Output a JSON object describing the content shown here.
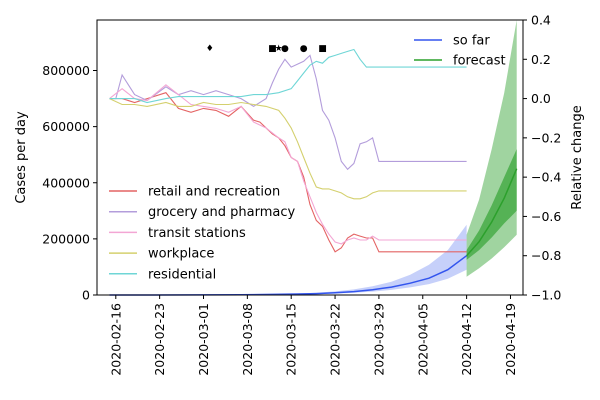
{
  "chart_data": {
    "type": "line",
    "title": "",
    "xlabel": "",
    "ylabel": "Cases per day",
    "y2label": "Relative change",
    "x_start": "2020-02-13",
    "x_end": "2020-04-21",
    "ylim": [
      0,
      980000
    ],
    "y2lim": [
      -1.0,
      0.4
    ],
    "yticks": [
      0,
      200000,
      400000,
      600000,
      800000
    ],
    "yticklabels": [
      "0",
      "200000",
      "400000",
      "600000",
      "800000"
    ],
    "y2ticks": [
      -1.0,
      -0.8,
      -0.6,
      -0.4,
      -0.2,
      0.0,
      0.2,
      0.4
    ],
    "y2ticklabels": [
      "−1.0",
      "−0.8",
      "−0.6",
      "−0.4",
      "−0.2",
      "0.0",
      "0.2",
      "0.4"
    ],
    "xticks": [
      "2020-02-16",
      "2020-02-23",
      "2020-03-01",
      "2020-03-08",
      "2020-03-15",
      "2020-03-22",
      "2020-03-29",
      "2020-04-05",
      "2020-04-12",
      "2020-04-19"
    ],
    "cases_so_far": {
      "name": "so far",
      "color": "#3355ee",
      "x": [
        "2020-02-15",
        "2020-02-22",
        "2020-02-29",
        "2020-03-07",
        "2020-03-12",
        "2020-03-16",
        "2020-03-19",
        "2020-03-22",
        "2020-03-25",
        "2020-03-28",
        "2020-03-31",
        "2020-04-03",
        "2020-04-06",
        "2020-04-09",
        "2020-04-12"
      ],
      "mean": [
        0,
        0,
        200,
        1000,
        2000,
        3500,
        5000,
        8000,
        12000,
        19000,
        28000,
        42000,
        60000,
        90000,
        140000
      ],
      "lower": [
        0,
        0,
        100,
        600,
        1200,
        2000,
        3000,
        5000,
        8000,
        12000,
        18000,
        27000,
        39000,
        58000,
        90000
      ],
      "upper": [
        0,
        0,
        400,
        1600,
        3200,
        5500,
        8000,
        13000,
        20000,
        31000,
        47000,
        72000,
        108000,
        160000,
        250000
      ]
    },
    "cases_forecast": {
      "name": "forecast",
      "color": "#2ca02c",
      "x": [
        "2020-04-12",
        "2020-04-14",
        "2020-04-16",
        "2020-04-18",
        "2020-04-20"
      ],
      "mean": [
        140000,
        190000,
        260000,
        345000,
        450000
      ],
      "inner_lower": [
        125000,
        160000,
        205000,
        255000,
        300000
      ],
      "inner_upper": [
        160000,
        230000,
        320000,
        420000,
        520000
      ],
      "outer_lower": [
        65000,
        95000,
        130000,
        170000,
        215000
      ],
      "outer_upper": [
        215000,
        340000,
        520000,
        720000,
        980000
      ]
    },
    "mobility_series": [
      {
        "name": "retail and recreation",
        "color": "#e46464",
        "x": [
          "2020-02-15",
          "2020-02-17",
          "2020-02-19",
          "2020-02-21",
          "2020-02-24",
          "2020-02-26",
          "2020-02-28",
          "2020-03-01",
          "2020-03-03",
          "2020-03-05",
          "2020-03-07",
          "2020-03-09",
          "2020-03-10",
          "2020-03-12",
          "2020-03-13",
          "2020-03-14",
          "2020-03-15",
          "2020-03-16",
          "2020-03-17",
          "2020-03-18",
          "2020-03-19",
          "2020-03-20",
          "2020-03-21",
          "2020-03-22",
          "2020-03-23",
          "2020-03-24",
          "2020-03-25",
          "2020-03-26",
          "2020-03-27",
          "2020-03-28",
          "2020-03-29",
          "2020-04-12"
        ],
        "values": [
          0.0,
          0.0,
          -0.02,
          0.0,
          0.03,
          -0.05,
          -0.07,
          -0.05,
          -0.06,
          -0.09,
          -0.04,
          -0.11,
          -0.12,
          -0.18,
          -0.2,
          -0.24,
          -0.3,
          -0.32,
          -0.4,
          -0.54,
          -0.62,
          -0.65,
          -0.72,
          -0.78,
          -0.76,
          -0.71,
          -0.69,
          -0.7,
          -0.71,
          -0.71,
          -0.78,
          -0.78
        ]
      },
      {
        "name": "grocery and pharmacy",
        "color": "#b39ddb",
        "x": [
          "2020-02-15",
          "2020-02-16",
          "2020-02-17",
          "2020-02-19",
          "2020-02-21",
          "2020-02-24",
          "2020-02-26",
          "2020-02-28",
          "2020-03-01",
          "2020-03-03",
          "2020-03-05",
          "2020-03-07",
          "2020-03-09",
          "2020-03-11",
          "2020-03-12",
          "2020-03-13",
          "2020-03-14",
          "2020-03-15",
          "2020-03-17",
          "2020-03-18",
          "2020-03-19",
          "2020-03-20",
          "2020-03-21",
          "2020-03-22",
          "2020-03-23",
          "2020-03-24",
          "2020-03-25",
          "2020-03-26",
          "2020-03-27",
          "2020-03-28",
          "2020-03-29",
          "2020-04-12"
        ],
        "values": [
          0.0,
          0.0,
          0.12,
          0.02,
          -0.01,
          0.06,
          0.02,
          0.04,
          0.02,
          0.04,
          0.02,
          0.0,
          -0.04,
          0.0,
          0.08,
          0.15,
          0.2,
          0.16,
          0.19,
          0.22,
          0.1,
          -0.06,
          -0.11,
          -0.2,
          -0.32,
          -0.36,
          -0.33,
          -0.23,
          -0.22,
          -0.2,
          -0.32,
          -0.32
        ]
      },
      {
        "name": "transit stations",
        "color": "#f3a6d4",
        "x": [
          "2020-02-15",
          "2020-02-17",
          "2020-02-19",
          "2020-02-21",
          "2020-02-24",
          "2020-02-26",
          "2020-02-28",
          "2020-03-01",
          "2020-03-03",
          "2020-03-05",
          "2020-03-07",
          "2020-03-09",
          "2020-03-11",
          "2020-03-13",
          "2020-03-14",
          "2020-03-15",
          "2020-03-16",
          "2020-03-17",
          "2020-03-18",
          "2020-03-19",
          "2020-03-20",
          "2020-03-21",
          "2020-03-22",
          "2020-03-23",
          "2020-03-24",
          "2020-03-25",
          "2020-03-26",
          "2020-03-27",
          "2020-03-28",
          "2020-03-29",
          "2020-04-12"
        ],
        "values": [
          0.0,
          0.05,
          0.0,
          -0.01,
          0.07,
          0.02,
          -0.03,
          -0.04,
          -0.05,
          -0.07,
          -0.04,
          -0.12,
          -0.15,
          -0.2,
          -0.22,
          -0.3,
          -0.32,
          -0.42,
          -0.5,
          -0.58,
          -0.64,
          -0.69,
          -0.73,
          -0.74,
          -0.72,
          -0.71,
          -0.72,
          -0.72,
          -0.7,
          -0.72,
          -0.72
        ]
      },
      {
        "name": "workplace",
        "color": "#d4d06e",
        "x": [
          "2020-02-15",
          "2020-02-17",
          "2020-02-19",
          "2020-02-21",
          "2020-02-24",
          "2020-02-26",
          "2020-02-28",
          "2020-03-01",
          "2020-03-03",
          "2020-03-05",
          "2020-03-07",
          "2020-03-09",
          "2020-03-11",
          "2020-03-13",
          "2020-03-14",
          "2020-03-15",
          "2020-03-16",
          "2020-03-17",
          "2020-03-18",
          "2020-03-19",
          "2020-03-20",
          "2020-03-21",
          "2020-03-22",
          "2020-03-23",
          "2020-03-24",
          "2020-03-25",
          "2020-03-26",
          "2020-03-27",
          "2020-03-28",
          "2020-03-29",
          "2020-04-12"
        ],
        "values": [
          0.0,
          -0.03,
          -0.03,
          -0.04,
          -0.02,
          -0.04,
          -0.04,
          -0.02,
          -0.03,
          -0.03,
          -0.02,
          -0.03,
          -0.04,
          -0.06,
          -0.1,
          -0.15,
          -0.22,
          -0.3,
          -0.38,
          -0.45,
          -0.46,
          -0.46,
          -0.47,
          -0.48,
          -0.5,
          -0.51,
          -0.51,
          -0.5,
          -0.48,
          -0.47,
          -0.47
        ]
      },
      {
        "name": "residential",
        "color": "#6fd6d6",
        "x": [
          "2020-02-15",
          "2020-02-17",
          "2020-02-19",
          "2020-02-21",
          "2020-02-24",
          "2020-02-26",
          "2020-02-28",
          "2020-03-01",
          "2020-03-03",
          "2020-03-05",
          "2020-03-07",
          "2020-03-09",
          "2020-03-11",
          "2020-03-13",
          "2020-03-15",
          "2020-03-16",
          "2020-03-17",
          "2020-03-18",
          "2020-03-19",
          "2020-03-20",
          "2020-03-21",
          "2020-03-22",
          "2020-03-23",
          "2020-03-24",
          "2020-03-25",
          "2020-03-26",
          "2020-03-27",
          "2020-03-28",
          "2020-03-29",
          "2020-04-12"
        ],
        "values": [
          0.0,
          0.0,
          0.0,
          -0.02,
          0.0,
          0.01,
          0.01,
          0.01,
          0.01,
          0.01,
          0.01,
          0.02,
          0.02,
          0.03,
          0.05,
          0.09,
          0.13,
          0.17,
          0.19,
          0.18,
          0.21,
          0.22,
          0.23,
          0.24,
          0.25,
          0.2,
          0.16,
          0.16,
          0.16,
          0.16
        ]
      }
    ],
    "markers": [
      {
        "date": "2020-03-02",
        "symbol": "♦"
      },
      {
        "date": "2020-03-12",
        "symbol": "■"
      },
      {
        "date": "2020-03-13",
        "symbol": "★"
      },
      {
        "date": "2020-03-14",
        "symbol": "●"
      },
      {
        "date": "2020-03-17",
        "symbol": "●"
      },
      {
        "date": "2020-03-20",
        "symbol": "■"
      }
    ],
    "legend_upper": [
      "so far",
      "forecast"
    ],
    "legend_lower": [
      "retail and recreation",
      "grocery and pharmacy",
      "transit stations",
      "workplace",
      "residential"
    ]
  }
}
